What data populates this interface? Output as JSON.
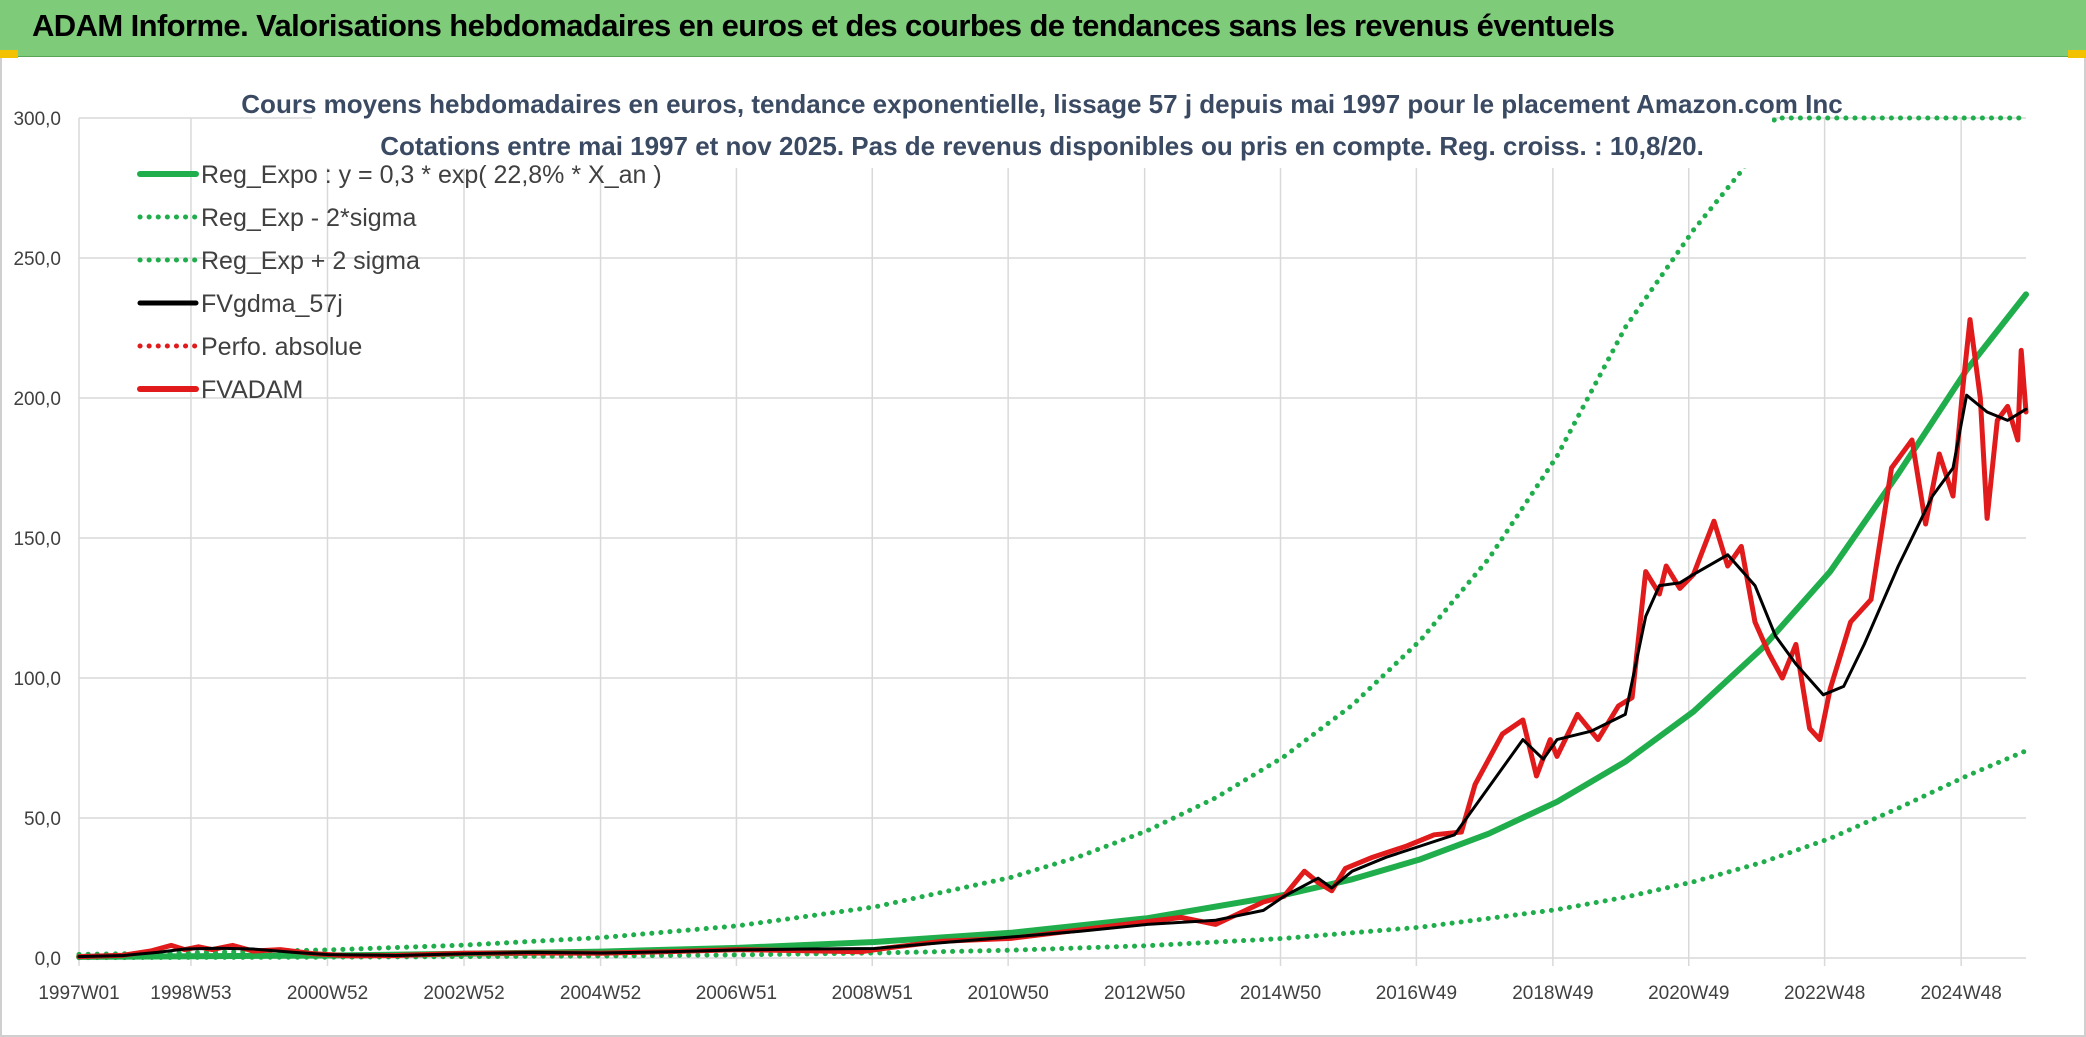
{
  "header": {
    "title": "ADAM Informe. Valorisations hebdomadaires en euros et des courbes de tendances sans les revenus éventuels"
  },
  "chart_data": {
    "type": "line",
    "title": "Cours moyens hebdomadaires en euros, tendance exponentielle, lissage 57 j depuis mai 1997 pour le placement Amazon.com Inc",
    "subtitle": "Cotations entre mai 1997 et nov 2025. Pas de revenus disponibles ou pris en compte. Reg. croiss. : 10,8/20.",
    "xlabel": "",
    "ylabel": "",
    "ylim": [
      0,
      300
    ],
    "yticks": [
      "0,0",
      "50,0",
      "100,0",
      "150,0",
      "200,0",
      "250,0",
      "300,0"
    ],
    "xlim": [
      1997.35,
      2025.87
    ],
    "xticks": [
      {
        "label": "1997W01",
        "x": 1997.0
      },
      {
        "label": "1998W53",
        "x": 1998.99
      },
      {
        "label": "2000W52",
        "x": 2000.99
      },
      {
        "label": "2002W52",
        "x": 2002.99
      },
      {
        "label": "2004W52",
        "x": 2004.99
      },
      {
        "label": "2006W51",
        "x": 2006.98
      },
      {
        "label": "2008W51",
        "x": 2008.97
      },
      {
        "label": "2010W50",
        "x": 2010.96
      },
      {
        "label": "2012W50",
        "x": 2012.96
      },
      {
        "label": "2014W50",
        "x": 2014.95
      },
      {
        "label": "2016W49",
        "x": 2016.94
      },
      {
        "label": "2018W49",
        "x": 2018.94
      },
      {
        "label": "2020W49",
        "x": 2020.93
      },
      {
        "label": "2022W48",
        "x": 2022.92
      },
      {
        "label": "2024W48",
        "x": 2024.92
      }
    ],
    "grid": true,
    "legend_position": "top-left",
    "series": [
      {
        "name": "Reg_Expo : y = 0,3 * exp( 22,8% *  X_an )",
        "color": "#1fae4b",
        "style": "solid",
        "x": [
          1997.35,
          1999,
          2001,
          2003,
          2005,
          2007,
          2009,
          2011,
          2013,
          2015,
          2016,
          2017,
          2018,
          2019,
          2020,
          2021,
          2022,
          2023,
          2024,
          2025,
          2025.87
        ],
        "y": [
          0.4,
          0.6,
          0.9,
          1.5,
          2.3,
          3.6,
          5.7,
          9.0,
          14.2,
          22.5,
          28.1,
          35.3,
          44.4,
          55.8,
          70.1,
          88.0,
          110.5,
          138.0,
          173.0,
          210.0,
          237.0
        ]
      },
      {
        "name": "Reg_Exp - 2*sigma",
        "color": "#1fae4b",
        "style": "dotted",
        "x": [
          1997.35,
          1999,
          2001,
          2003,
          2005,
          2007,
          2009,
          2011,
          2013,
          2015,
          2017,
          2019,
          2020,
          2021,
          2022,
          2023,
          2024,
          2025,
          2025.87
        ],
        "y": [
          0.1,
          0.2,
          0.3,
          0.5,
          0.7,
          1.1,
          1.8,
          2.8,
          4.4,
          7.0,
          11.0,
          17.3,
          21.7,
          27.2,
          34.1,
          42.7,
          53.5,
          65.0,
          74.0
        ]
      },
      {
        "name": "Reg_Exp + 2 sigma",
        "color": "#1fae4b",
        "style": "dotted",
        "x": [
          1997.35,
          1999,
          2001,
          2003,
          2005,
          2007,
          2009,
          2011,
          2012,
          2013,
          2014,
          2015,
          2016,
          2017,
          2018,
          2019,
          2020,
          2021,
          2021.7,
          2022.2,
          2025.87
        ],
        "y": [
          1.3,
          1.9,
          2.9,
          4.6,
          7.3,
          11.5,
          18.2,
          28.8,
          36.2,
          45.5,
          57.2,
          71.9,
          90.3,
          113.5,
          142.6,
          179.2,
          225.2,
          260.0,
          281.0,
          300.0,
          300.0
        ]
      },
      {
        "name": "FVgdma_57j",
        "color": "#000000",
        "style": "solid",
        "x": [
          1997.35,
          1998,
          1998.5,
          1998.9,
          1999.4,
          1999.9,
          2000.5,
          2001,
          2002,
          2003,
          2004,
          2005,
          2006,
          2007,
          2008,
          2009,
          2010,
          2011,
          2012,
          2013,
          2014,
          2014.7,
          2015,
          2015.5,
          2015.7,
          2016,
          2016.5,
          2017,
          2017.5,
          2018,
          2018.5,
          2018.8,
          2019,
          2019.5,
          2020,
          2020.3,
          2020.5,
          2020.8,
          2021,
          2021.5,
          2021.9,
          2022.2,
          2022.5,
          2022.9,
          2023.2,
          2023.5,
          2024,
          2024.5,
          2024.8,
          2025,
          2025.3,
          2025.6,
          2025.87
        ],
        "y": [
          0.5,
          0.9,
          2.0,
          3.2,
          3.5,
          3.2,
          2.0,
          1.2,
          0.9,
          1.5,
          2.0,
          1.8,
          2.2,
          2.9,
          3.2,
          3.4,
          5.5,
          7.5,
          9.5,
          12.0,
          13.5,
          17.0,
          22.0,
          28.5,
          25.0,
          31.0,
          36.0,
          40.0,
          44.0,
          61.0,
          78.0,
          71.0,
          78.0,
          81.0,
          87.0,
          122.0,
          133.0,
          134.0,
          137.0,
          144.0,
          133.0,
          115.0,
          105.0,
          94.0,
          97.0,
          112.0,
          140.0,
          165.0,
          175.0,
          201.0,
          195.0,
          192.0,
          196.0
        ]
      },
      {
        "name": "Perfo. absolue",
        "color": "#e11b1b",
        "style": "dotted",
        "x": [],
        "y": []
      },
      {
        "name": "FVADAM",
        "color": "#e11b1b",
        "style": "solid",
        "x": [
          1997.35,
          1998,
          1998.4,
          1998.7,
          1998.9,
          1999.1,
          1999.3,
          1999.6,
          1999.9,
          2000.3,
          2000.8,
          2001.3,
          2002,
          2003,
          2004,
          2005,
          2006,
          2007,
          2008,
          2008.8,
          2009.2,
          2010,
          2011,
          2012,
          2013,
          2013.5,
          2014,
          2014.7,
          2015,
          2015.3,
          2015.5,
          2015.7,
          2015.9,
          2016.3,
          2016.8,
          2017.2,
          2017.6,
          2017.8,
          2018.2,
          2018.5,
          2018.7,
          2018.9,
          2019.0,
          2019.3,
          2019.6,
          2019.9,
          2020.1,
          2020.3,
          2020.5,
          2020.6,
          2020.8,
          2021.0,
          2021.3,
          2021.5,
          2021.7,
          2021.9,
          2022.1,
          2022.3,
          2022.5,
          2022.7,
          2022.85,
          2023.0,
          2023.3,
          2023.6,
          2023.9,
          2024.2,
          2024.4,
          2024.6,
          2024.8,
          2024.95,
          2025.05,
          2025.2,
          2025.3,
          2025.45,
          2025.6,
          2025.75,
          2025.8,
          2025.87
        ],
        "y": [
          0.5,
          1.0,
          2.5,
          4.5,
          3.0,
          4.0,
          3.0,
          4.5,
          2.5,
          3.0,
          1.5,
          0.8,
          0.9,
          1.7,
          1.8,
          1.7,
          2.3,
          3.0,
          2.6,
          2.2,
          3.6,
          6.0,
          7.0,
          10.0,
          13.0,
          14.5,
          12.0,
          20.0,
          22.0,
          31.0,
          27.0,
          24.0,
          32.0,
          36.0,
          40.0,
          44.0,
          45.0,
          62.0,
          80.0,
          85.0,
          65.0,
          78.0,
          72.0,
          87.0,
          78.0,
          90.0,
          93.0,
          138.0,
          130.0,
          140.0,
          132.0,
          137.0,
          156.0,
          140.0,
          147.0,
          120.0,
          109.0,
          100.0,
          112.0,
          82.0,
          78.0,
          96.0,
          120.0,
          128.0,
          175.0,
          185.0,
          155.0,
          180.0,
          165.0,
          205.0,
          228.0,
          200.0,
          157.0,
          192.0,
          197.0,
          185.0,
          217.0,
          195.0
        ]
      }
    ]
  }
}
